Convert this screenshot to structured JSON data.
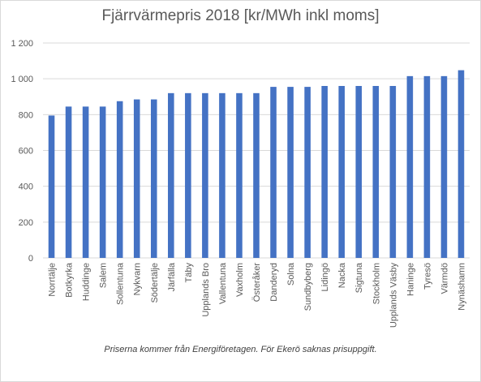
{
  "chart_data": {
    "type": "bar",
    "title": "Fjärrvärmepris 2018 [kr/MWh inkl moms]",
    "footnote": "Priserna kommer från Energiföretagen. För Ekerö saknas prisuppgift.",
    "xlabel": "",
    "ylabel": "",
    "ylim": [
      0,
      1200
    ],
    "yticks": [
      0,
      200,
      400,
      600,
      800,
      1000,
      1200
    ],
    "ytick_labels": [
      "0",
      "200",
      "400",
      "600",
      "800",
      "1 000",
      "1 200"
    ],
    "grid": true,
    "legend": "none",
    "bar_color": "#4472c4",
    "grid_color": "#d9d9d9",
    "categories": [
      "Norrtälje",
      "Botkyrka",
      "Huddinge",
      "Salem",
      "Sollentuna",
      "Nykvarn",
      "Södertälje",
      "Järfälla",
      "Täby",
      "Upplands Bro",
      "Vallentuna",
      "Vaxholm",
      "Österåker",
      "Danderyd",
      "Solna",
      "Sundbyberg",
      "Lidingö",
      "Nacka",
      "Sigtuna",
      "Stockholm",
      "Upplands Väsby",
      "Haninge",
      "Tyresö",
      "Värmdö",
      "Nynäshamn"
    ],
    "values": [
      795,
      845,
      845,
      845,
      875,
      885,
      885,
      920,
      920,
      920,
      920,
      920,
      920,
      955,
      955,
      955,
      960,
      960,
      960,
      960,
      960,
      1015,
      1015,
      1015,
      1048
    ]
  }
}
